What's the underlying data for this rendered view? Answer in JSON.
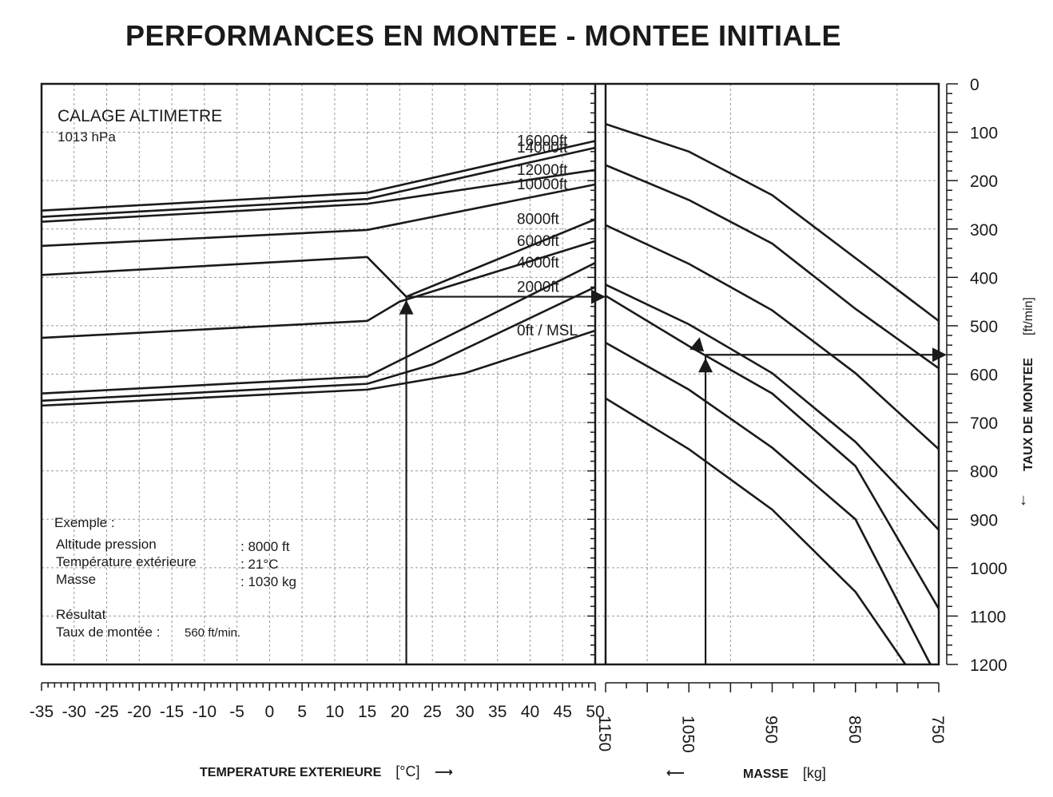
{
  "title": "PERFORMANCES EN MONTEE - MONTEE INITIALE",
  "calage": {
    "line1": "CALAGE ALTIMETRE",
    "line2": "1013 hPa"
  },
  "example": {
    "heading": "Exemple :",
    "rows": [
      {
        "label": "Altitude pression",
        "value": ": 8000 ft"
      },
      {
        "label": "Température extérieure",
        "value": ": 21°C"
      },
      {
        "label": "Masse",
        "value": ": 1030 kg"
      }
    ],
    "result_heading": "Résultat",
    "result_label": "Taux de montée :",
    "result_value": "560 ft/min."
  },
  "axes": {
    "temperature_label": "TEMPERATURE EXTERIEURE",
    "temperature_unit": "[°C]",
    "mass_label": "MASSE",
    "mass_unit": "[kg]",
    "rate_label": "TAUX DE MONTEE",
    "rate_unit": "[ft/min]"
  },
  "chart_data": {
    "type": "line",
    "title": "PERFORMANCES EN MONTEE - MONTEE INITIALE",
    "temperature_axis": {
      "label": "TEMPERATURE EXTERIEURE [°C]",
      "range": [
        -35,
        50
      ],
      "ticks": [
        -35,
        -30,
        -25,
        -20,
        -15,
        -10,
        -5,
        0,
        5,
        10,
        15,
        20,
        25,
        30,
        35,
        40,
        45,
        50
      ]
    },
    "mass_axis": {
      "label": "MASSE [kg]",
      "range": [
        1150,
        750
      ],
      "ticks": [
        1150,
        1050,
        950,
        850,
        750
      ]
    },
    "rate_axis": {
      "label": "TAUX DE MONTEE [ft/min]",
      "range": [
        0,
        1200
      ],
      "inverted": true,
      "ticks": [
        0,
        100,
        200,
        300,
        400,
        500,
        600,
        700,
        800,
        900,
        1000,
        1100,
        1200
      ]
    },
    "altitude_curves": [
      {
        "name": "16000ft",
        "points": [
          [
            -35,
            262
          ],
          [
            15,
            225
          ],
          [
            50,
            118
          ]
        ]
      },
      {
        "name": "14000ft",
        "points": [
          [
            -35,
            275
          ],
          [
            15,
            238
          ],
          [
            50,
            132
          ]
        ]
      },
      {
        "name": "12000ft",
        "points": [
          [
            -35,
            285
          ],
          [
            15,
            248
          ],
          [
            50,
            178
          ]
        ]
      },
      {
        "name": "10000ft",
        "points": [
          [
            -35,
            335
          ],
          [
            15,
            302
          ],
          [
            50,
            208
          ]
        ]
      },
      {
        "name": "8000ft",
        "points": [
          [
            -35,
            395
          ],
          [
            15,
            358
          ],
          [
            21,
            440
          ],
          [
            50,
            280
          ]
        ]
      },
      {
        "name": "6000ft",
        "points": [
          [
            -35,
            525
          ],
          [
            15,
            490
          ],
          [
            20,
            450
          ],
          [
            50,
            325
          ]
        ]
      },
      {
        "name": "4000ft",
        "points": [
          [
            -35,
            640
          ],
          [
            15,
            605
          ],
          [
            50,
            370
          ]
        ]
      },
      {
        "name": "2000ft",
        "points": [
          [
            -35,
            655
          ],
          [
            15,
            620
          ],
          [
            25,
            580
          ],
          [
            50,
            420
          ]
        ]
      },
      {
        "name": "0ft / MSL",
        "points": [
          [
            -35,
            665
          ],
          [
            15,
            632
          ],
          [
            30,
            598
          ],
          [
            50,
            510
          ]
        ]
      }
    ],
    "mass_lines": [
      {
        "points": [
          [
            1150,
            83
          ],
          [
            1050,
            140
          ],
          [
            950,
            230
          ],
          [
            850,
            360
          ],
          [
            750,
            490
          ]
        ]
      },
      {
        "points": [
          [
            1150,
            168
          ],
          [
            1050,
            240
          ],
          [
            950,
            330
          ],
          [
            850,
            465
          ],
          [
            750,
            588
          ]
        ]
      },
      {
        "points": [
          [
            1150,
            292
          ],
          [
            1050,
            372
          ],
          [
            950,
            468
          ],
          [
            850,
            598
          ],
          [
            750,
            755
          ]
        ]
      },
      {
        "points": [
          [
            1150,
            415
          ],
          [
            1050,
            497
          ],
          [
            950,
            598
          ],
          [
            850,
            740
          ],
          [
            750,
            922
          ]
        ]
      },
      {
        "points": [
          [
            1150,
            438
          ],
          [
            1050,
            542
          ],
          [
            950,
            640
          ],
          [
            850,
            790
          ],
          [
            750,
            1085
          ]
        ]
      },
      {
        "points": [
          [
            1150,
            535
          ],
          [
            1050,
            632
          ],
          [
            950,
            752
          ],
          [
            850,
            900
          ],
          [
            760,
            1200
          ]
        ]
      },
      {
        "points": [
          [
            1150,
            650
          ],
          [
            1050,
            755
          ],
          [
            950,
            880
          ],
          [
            850,
            1050
          ],
          [
            790,
            1200
          ]
        ]
      }
    ],
    "example_path": {
      "temperature": 21,
      "pressure_altitude": "8000 ft",
      "intermediate_rate": 440,
      "mass": 1030,
      "result_rate": 560
    },
    "grid": true
  }
}
